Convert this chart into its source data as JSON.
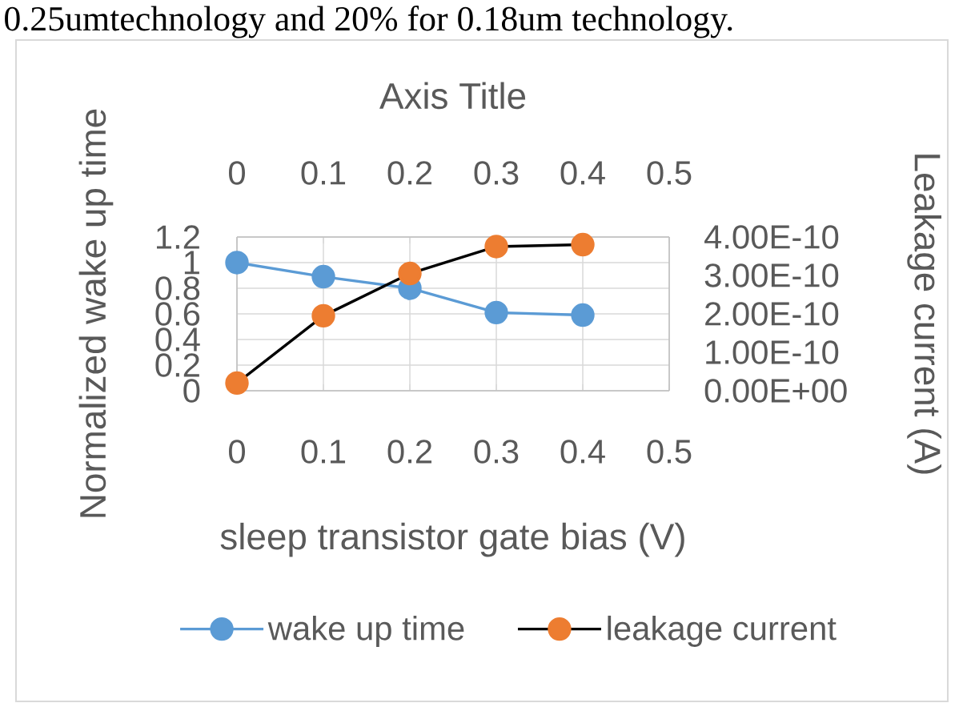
{
  "chart_data": {
    "type": "line",
    "annotations": [
      "0.25umtechnology and 20% for 0.18um technology."
    ],
    "xlabel": "sleep transistor gate bias (V)",
    "ylabel": "Normalized wake up time",
    "y2label": "Leakage current (A)",
    "x2label": "Axis Title",
    "x": [
      0,
      0.1,
      0.2,
      0.3,
      0.4
    ],
    "series": [
      {
        "name": "wake up time",
        "color": "#5b9bd5",
        "values": [
          1.0,
          0.89,
          0.8,
          0.61,
          0.59
        ]
      },
      {
        "name": "leakage current",
        "color": "#000000",
        "colors": [
          "#ed7d31",
          "#ed7d31",
          "#ed7d31",
          "#ed7d31",
          "#ed7d31"
        ],
        "axis": "y2",
        "values": [
          2e-11,
          1.95e-10,
          3.05e-10,
          3.75e-10,
          3.8e-10
        ]
      }
    ],
    "xlim": [
      0,
      0.5
    ],
    "xticks": [
      0,
      0.1,
      0.2,
      0.3,
      0.4,
      0.5
    ],
    "x2lim": [
      0,
      0.5
    ],
    "x2ticks": [
      0,
      0.1,
      0.2,
      0.3,
      0.4,
      0.5
    ],
    "ylim": [
      0,
      1.2
    ],
    "yticks": [
      0,
      0.2,
      0.4,
      0.6,
      0.8,
      1,
      1.2
    ],
    "y2lim": [
      0,
      4e-10
    ],
    "y2ticks": [
      {
        "value": 0,
        "label": "0.00E+00"
      },
      {
        "value": 1e-10,
        "label": "1.00E-10"
      },
      {
        "value": 2e-10,
        "label": "2.00E-10"
      },
      {
        "value": 3e-10,
        "label": "3.00E-10"
      },
      {
        "value": 4e-10,
        "label": "4.00E-10"
      }
    ],
    "grid": true,
    "legend": "bottom",
    "marker": "circle",
    "line_style": "solid"
  }
}
